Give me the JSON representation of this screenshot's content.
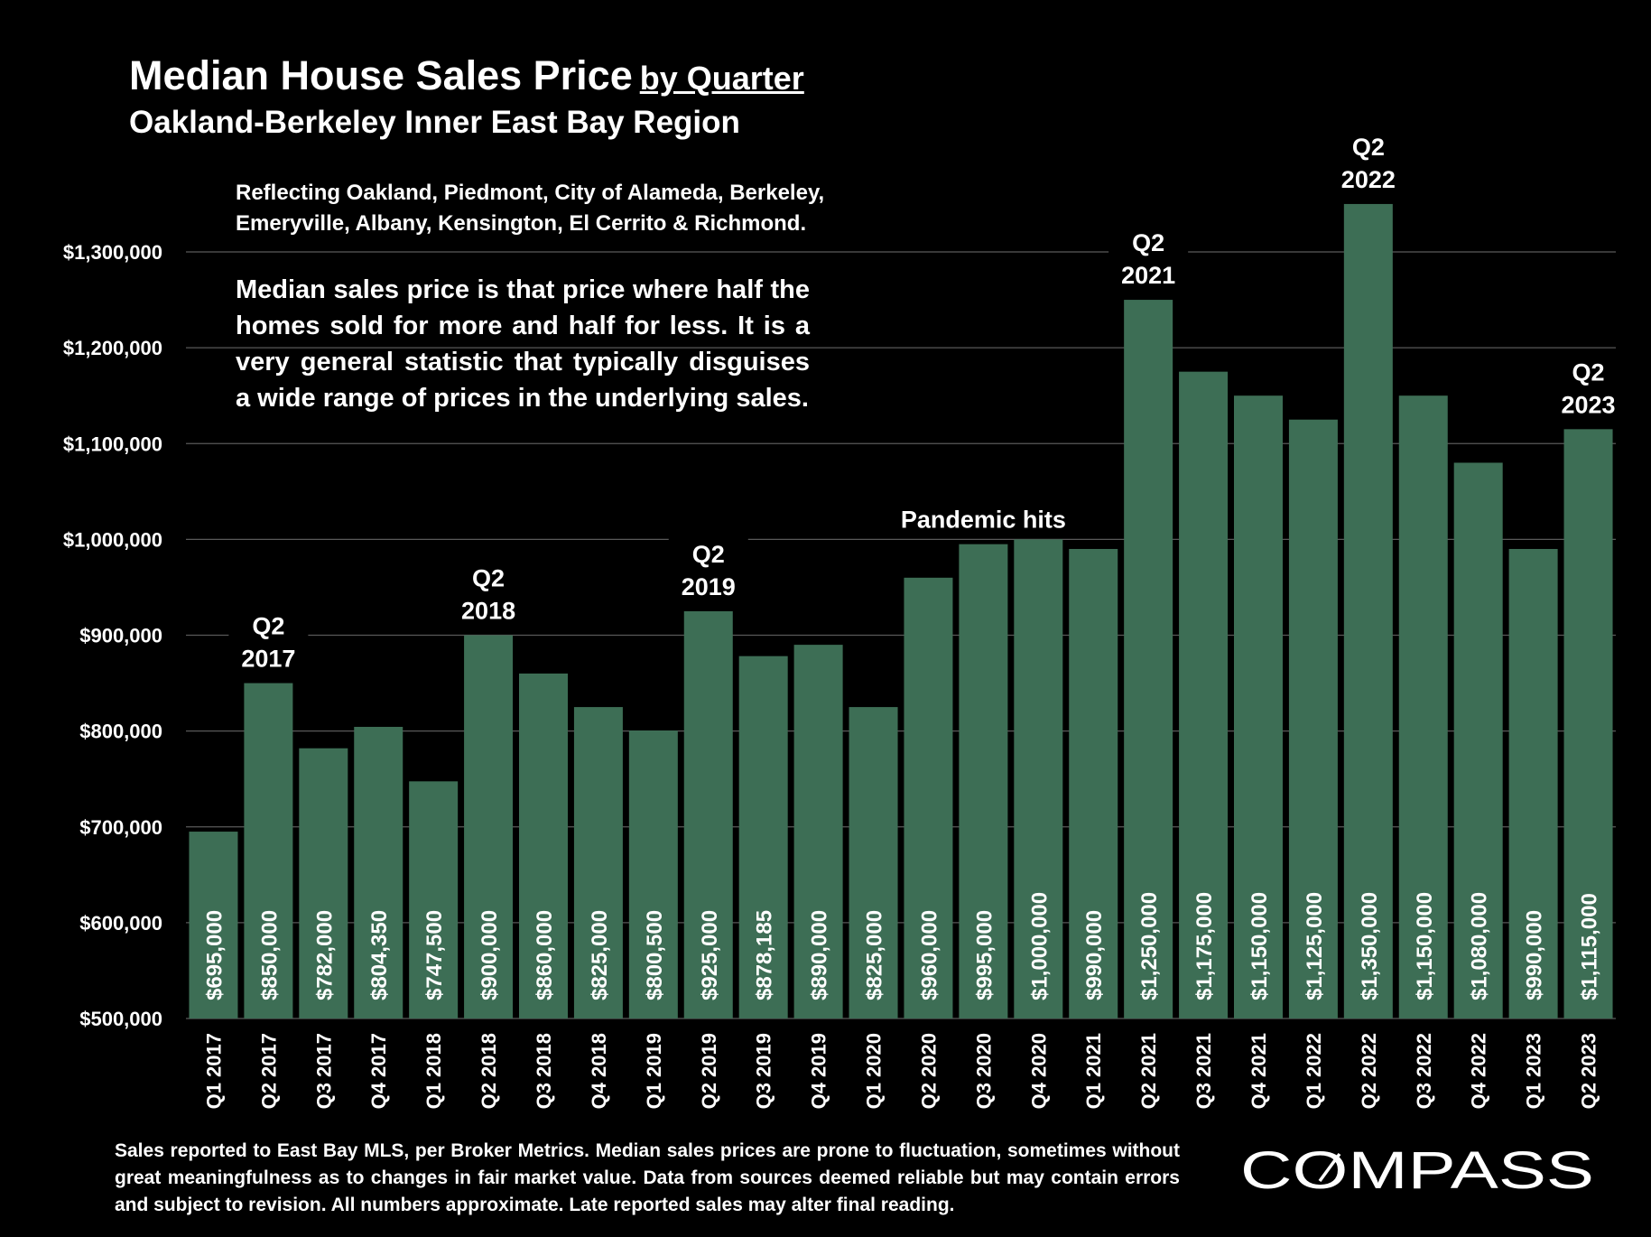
{
  "header": {
    "title": "Median House Sales Price",
    "title_suffix": "by Quarter",
    "subtitle": "Oakland-Berkeley Inner East Bay Region",
    "reflecting_line1": "Reflecting Oakland, Piedmont, City of Alameda, Berkeley,",
    "reflecting_line2": "Emeryville, Albany, Kensington, El Cerrito & Richmond.",
    "note": "Median sales price is that price where half the homes sold for more and half for less. It is a very general statistic that typically disguises a wide range of prices in the underlying sales."
  },
  "footer": {
    "note": "Sales reported to East Bay MLS, per Broker Metrics. Median sales prices are prone to fluctuation, sometimes without great meaningfulness as to changes in fair market value. Data from sources deemed reliable but may contain errors and subject to revision. All numbers approximate. Late reported sales may alter final reading.",
    "logo_text": "COMPASS"
  },
  "colors": {
    "background": "#000000",
    "bar": "#3d6e55",
    "text": "#ffffff",
    "gridline": "#595959"
  },
  "chart_data": {
    "type": "bar",
    "categories": [
      "Q1 2017",
      "Q2 2017",
      "Q3 2017",
      "Q4 2017",
      "Q1 2018",
      "Q2 2018",
      "Q3 2018",
      "Q4 2018",
      "Q1 2019",
      "Q2 2019",
      "Q3 2019",
      "Q4 2019",
      "Q1 2020",
      "Q2 2020",
      "Q3 2020",
      "Q4 2020",
      "Q1 2021",
      "Q2 2021",
      "Q3 2021",
      "Q4 2021",
      "Q1 2022",
      "Q2 2022",
      "Q3 2022",
      "Q4 2022",
      "Q1 2023",
      "Q2 2023"
    ],
    "values": [
      695000,
      850000,
      782000,
      804350,
      747500,
      900000,
      860000,
      825000,
      800500,
      925000,
      878185,
      890000,
      825000,
      960000,
      995000,
      1000000,
      990000,
      1250000,
      1175000,
      1150000,
      1125000,
      1350000,
      1150000,
      1080000,
      990000,
      1115000
    ],
    "value_labels": [
      "$695,000",
      "$850,000",
      "$782,000",
      "$804,350",
      "$747,500",
      "$900,000",
      "$860,000",
      "$825,000",
      "$800,500",
      "$925,000",
      "$878,185",
      "$890,000",
      "$825,000",
      "$960,000",
      "$995,000",
      "$1,000,000",
      "$990,000",
      "$1,250,000",
      "$1,175,000",
      "$1,150,000",
      "$1,125,000",
      "$1,350,000",
      "$1,150,000",
      "$1,080,000",
      "$990,000",
      "$1,115,000"
    ],
    "ylim": [
      500000,
      1300000
    ],
    "yticks": [
      500000,
      600000,
      700000,
      800000,
      900000,
      1000000,
      1100000,
      1200000,
      1300000
    ],
    "ytick_labels": [
      "$500,000",
      "$600,000",
      "$700,000",
      "$800,000",
      "$900,000",
      "$1,000,000",
      "$1,100,000",
      "$1,200,000",
      "$1,300,000"
    ],
    "grid": true,
    "annotations": [
      {
        "category": "Q2 2017",
        "lines": [
          "Q2",
          "2017"
        ]
      },
      {
        "category": "Q2 2018",
        "lines": [
          "Q2",
          "2018"
        ]
      },
      {
        "category": "Q2 2019",
        "lines": [
          "Q2",
          "2019"
        ]
      },
      {
        "category": "Q3 2020",
        "lines": [
          "Pandemic hits"
        ]
      },
      {
        "category": "Q2 2021",
        "lines": [
          "Q2",
          "2021"
        ]
      },
      {
        "category": "Q2 2022",
        "lines": [
          "Q2",
          "2022"
        ]
      },
      {
        "category": "Q2 2023",
        "lines": [
          "Q2",
          "2023"
        ]
      }
    ]
  }
}
